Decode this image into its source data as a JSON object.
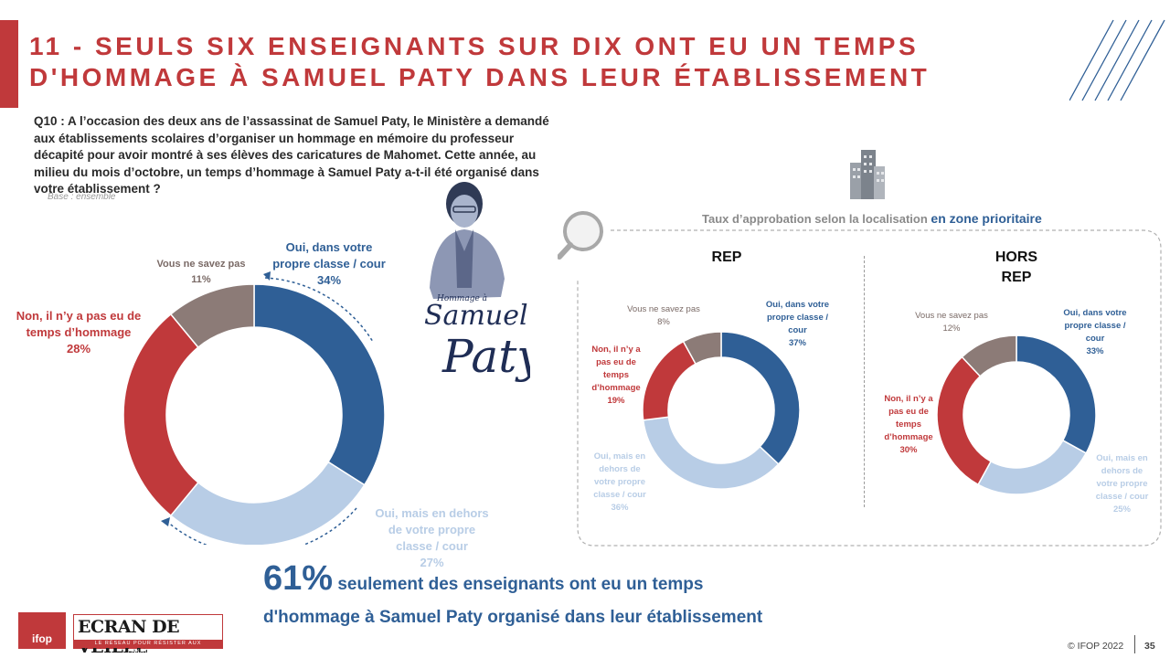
{
  "header": {
    "title": "11 - SEULS SIX ENSEIGNANTS SUR DIX ONT EU UN TEMPS\nD'HOMMAGE À SAMUEL PATY DANS LEUR ÉTABLISSEMENT"
  },
  "question": "Q10 : A l’occasion des deux ans de l’assassinat de Samuel Paty, le Ministère a demandé aux établissements scolaires d’organiser un hommage en mémoire du professeur décapité pour avoir montré à ses élèves des caricatures de Mahomet. Cette année, au milieu du mois d’octobre, un temps d’hommage à Samuel Paty a-t-il été organisé dans votre établissement ?",
  "base": "Base : ensemble",
  "portrait_caption": "Hommage à Samuel Paty",
  "panel": {
    "title_prefix": "Taux d’approbation selon la localisation ",
    "title_emph": "en zone prioritaire"
  },
  "colors": {
    "accent": "#c0393b",
    "blue": "#2f5f96",
    "light_blue": "#b8cde6",
    "red": "#c0393b",
    "grey": "#8c7b77"
  },
  "chart_data": [
    {
      "type": "pie",
      "donut": true,
      "title": "",
      "slices": [
        {
          "label": "Oui, dans votre propre classe / cour",
          "value": 34,
          "display": "34%",
          "color": "#2f5f96"
        },
        {
          "label": "Oui, mais en dehors de votre propre classe / cour",
          "value": 27,
          "display": "27%",
          "color": "#b8cde6"
        },
        {
          "label": "Non, il n’y a pas eu de temps d’hommage",
          "value": 28,
          "display": "28%",
          "color": "#c0393b"
        },
        {
          "label": "Vous ne savez pas",
          "value": 11,
          "display": "11%",
          "color": "#8c7b77"
        }
      ]
    },
    {
      "type": "pie",
      "donut": true,
      "title": "REP",
      "slices": [
        {
          "label": "Oui, dans votre propre classe / cour",
          "value": 37,
          "display": "37%",
          "color": "#2f5f96"
        },
        {
          "label": "Oui, mais en dehors de votre propre classe / cour",
          "value": 36,
          "display": "36%",
          "color": "#b8cde6"
        },
        {
          "label": "Non, il n’y a pas eu de temps d’hommage",
          "value": 19,
          "display": "19%",
          "color": "#c0393b"
        },
        {
          "label": "Vous ne savez pas",
          "value": 8,
          "display": "8%",
          "color": "#8c7b77"
        }
      ]
    },
    {
      "type": "pie",
      "donut": true,
      "title": "HORS REP",
      "slices": [
        {
          "label": "Oui, dans votre propre classe / cour",
          "value": 33,
          "display": "33%",
          "color": "#2f5f96"
        },
        {
          "label": "Oui, mais en dehors de votre propre classe / cour",
          "value": 25,
          "display": "25%",
          "color": "#b8cde6"
        },
        {
          "label": "Non, il n’y a pas eu de temps d’hommage",
          "value": 30,
          "display": "30%",
          "color": "#c0393b"
        },
        {
          "label": "Vous ne savez pas",
          "value": 12,
          "display": "12%",
          "color": "#8c7b77"
        }
      ]
    }
  ],
  "main_labels": {
    "oui_classe_a": "Oui, dans votre",
    "oui_classe_b": "propre classe / cour",
    "oui_dehors_a": "Oui, mais en dehors",
    "oui_dehors_b": "de votre propre",
    "oui_dehors_c": "classe / cour",
    "non_a": "Non, il n’y a pas eu de",
    "non_b": "temps d’hommage",
    "nsp": "Vous ne savez pas"
  },
  "rep_labels": {
    "oui_classe_a": "Oui, dans votre",
    "oui_classe_b": "propre classe /",
    "oui_classe_c": "cour",
    "oui_dehors_a": "Oui, mais en",
    "oui_dehors_b": "dehors de",
    "oui_dehors_c": "votre propre",
    "oui_dehors_d": "classe / cour",
    "non_a": "Non, il n’y a",
    "non_b": "pas eu de",
    "non_c": "temps",
    "non_d": "d’hommage",
    "nsp": "Vous ne savez pas"
  },
  "hors_labels": {
    "oui_classe_a": "Oui, dans votre",
    "oui_classe_b": "propre classe /",
    "oui_classe_c": "cour",
    "oui_dehors_a": "Oui, mais en",
    "oui_dehors_b": "dehors de",
    "oui_dehors_c": "votre propre",
    "oui_dehors_d": "classe / cour",
    "non_a": "Non, il n’y a",
    "non_b": "pas eu de",
    "non_c": "temps",
    "non_d": "d’hommage",
    "nsp": "Vous ne savez pas"
  },
  "headline": {
    "percent": "61%",
    "text_1": " seulement des enseignants ont eu un temps",
    "text_2": "d'hommage à Samuel Paty organisé dans leur établissement"
  },
  "footer": {
    "ifop_logo": "ifop",
    "ecran_logo": "ECRAN DE VEILLE",
    "ecran_tagline": "LE RÉSEAU POUR RÉSISTER AUX FANATISMES",
    "copyright": "© IFOP 2022",
    "page_number": "35"
  }
}
